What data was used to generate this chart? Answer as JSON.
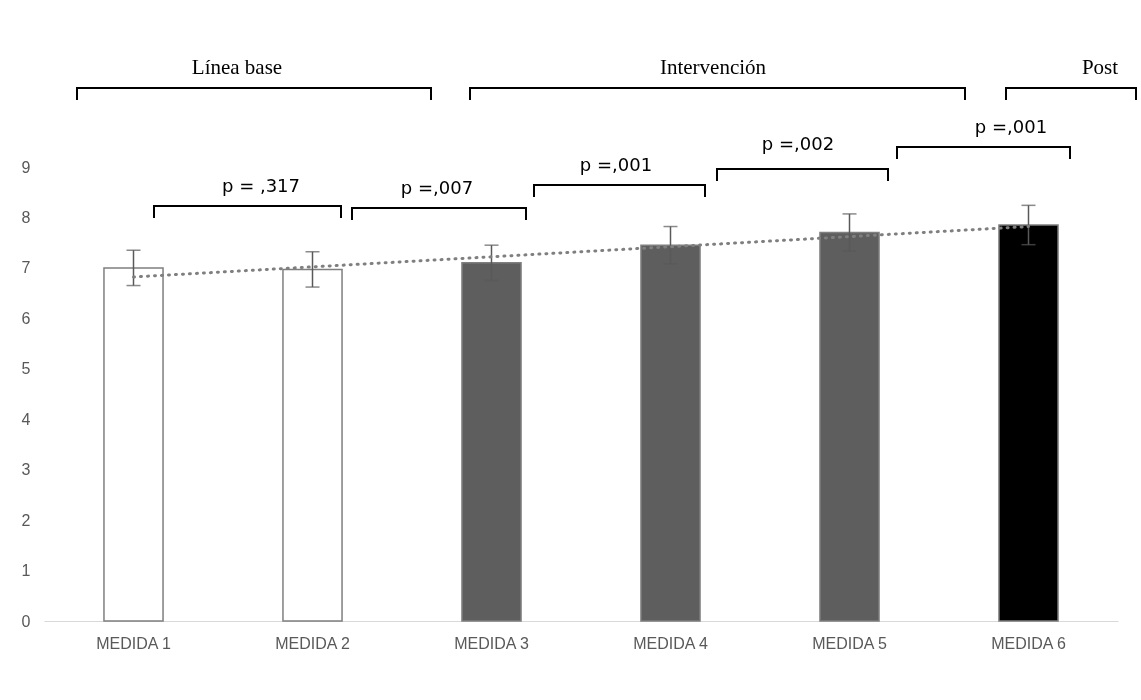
{
  "chart_data": {
    "type": "bar",
    "categories": [
      "MEDIDA 1",
      "MEDIDA 2",
      "MEDIDA 3",
      "MEDIDA 4",
      "MEDIDA 5",
      "MEDIDA 6"
    ],
    "series": [
      {
        "values": [
          7.0,
          6.97,
          7.1,
          7.45,
          7.7,
          7.85
        ],
        "errors": [
          0.35,
          0.35,
          0.35,
          0.37,
          0.37,
          0.39
        ],
        "colors": [
          "#ffffff",
          "#ffffff",
          "#5e5e5e",
          "#5e5e5e",
          "#5e5e5e",
          "#000000"
        ]
      },
      {
        "type": "line",
        "x": [
          "MEDIDA 1",
          "MEDIDA 6"
        ],
        "values": [
          6.82,
          7.82
        ],
        "color": "#7f7f7f",
        "line_style": "dotted"
      }
    ],
    "ylim": [
      0,
      9
    ],
    "yticks": [
      0,
      1,
      2,
      3,
      4,
      5,
      6,
      7,
      8,
      9
    ],
    "grid": false,
    "annotations": [
      "Línea base",
      "Intervención",
      "Post",
      "p = ,317",
      "p =,007",
      "p =,001",
      "p =,002",
      "p =,001"
    ]
  }
}
